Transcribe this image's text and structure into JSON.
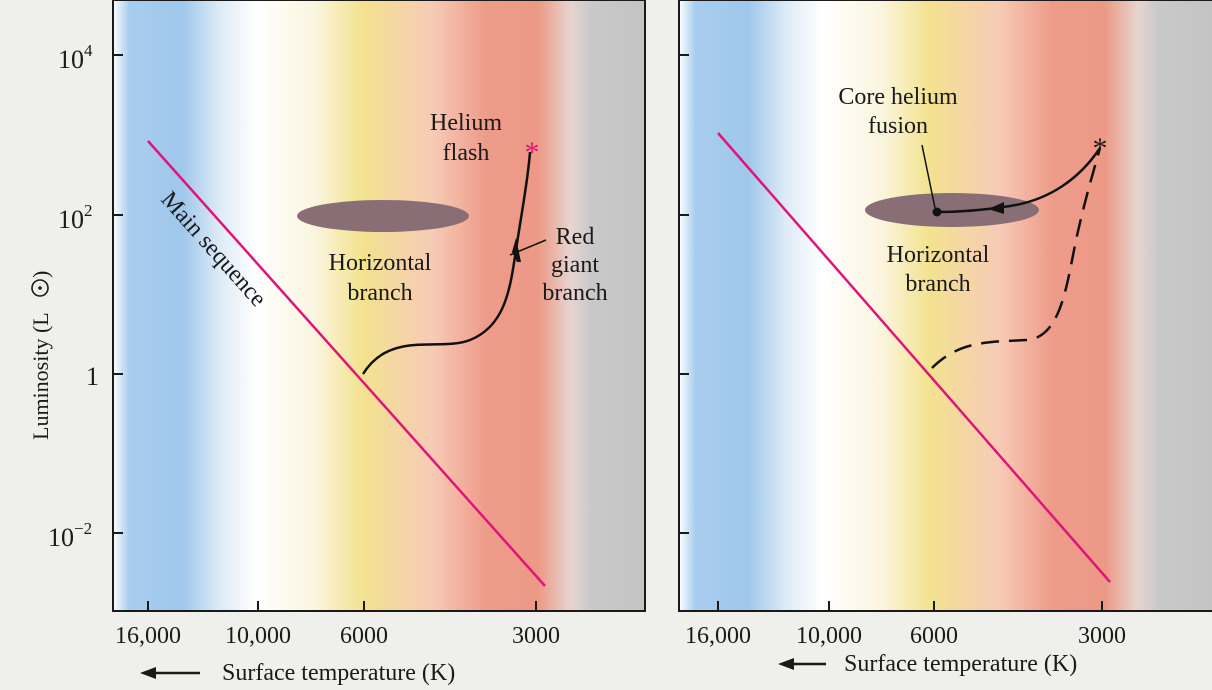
{
  "left_panel": {
    "y_axis_label": "Luminosity (L",
    "y_ticks": [
      {
        "base": "10",
        "exp": "4"
      },
      {
        "base": "10",
        "exp": "2"
      },
      {
        "base": "1",
        "exp": ""
      },
      {
        "base": "10",
        "exp": "−2"
      }
    ],
    "x_ticks": [
      "16,000",
      "10,000",
      "6000",
      "3000"
    ],
    "x_axis_label": "Surface temperature (K)",
    "labels": {
      "main_sequence": "Main sequence",
      "horizontal_branch": [
        "Horizontal",
        "branch"
      ],
      "helium_flash": [
        "Helium",
        "flash"
      ],
      "red_giant_branch": [
        "Red",
        "giant",
        "branch"
      ]
    }
  },
  "right_panel": {
    "x_ticks": [
      "16,000",
      "10,000",
      "6000",
      "3000"
    ],
    "x_axis_label": "Surface temperature (K)",
    "labels": {
      "core_helium_fusion": [
        "Core helium",
        "fusion"
      ],
      "horizontal_branch": [
        "Horizontal",
        "branch"
      ]
    }
  },
  "colors": {
    "main_sequence": "#e0157a",
    "helium_flash_star": "#e0157a",
    "horizontal_branch": "#8a6e76",
    "blue_band": "#9fc7ec",
    "yellow_band": "#f2e08a",
    "red_band": "#ec9a86",
    "gray_band": "#c6c6c6"
  }
}
